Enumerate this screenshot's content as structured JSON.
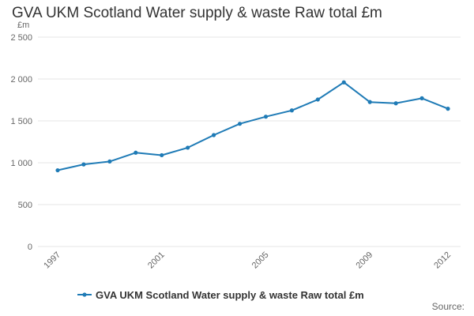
{
  "title": "GVA UKM Scotland Water supply & waste Raw total £m",
  "source_label": "Source:",
  "colors": {
    "series": "#1f7bb6",
    "grid": "#e6e6e6",
    "text": "#333333",
    "axis_text": "#666666"
  },
  "chart_data": {
    "type": "line",
    "title": "GVA UKM Scotland Water supply & waste Raw total £m",
    "ylabel": "£m",
    "xlabel": "",
    "ylim": [
      0,
      2500
    ],
    "yticks": [
      0,
      500,
      1000,
      1500,
      2000,
      2500
    ],
    "ytick_labels": [
      "0",
      "500",
      "1 000",
      "1 500",
      "2 000",
      "2 500"
    ],
    "xticks": [
      1997,
      2001,
      2005,
      2009,
      2012
    ],
    "x": [
      1997,
      1998,
      1999,
      2000,
      2001,
      2002,
      2003,
      2004,
      2005,
      2006,
      2007,
      2008,
      2009,
      2010,
      2011,
      2012
    ],
    "series": [
      {
        "name": "GVA UKM Scotland Water supply & waste Raw total £m",
        "values": [
          910,
          980,
          1015,
          1120,
          1090,
          1180,
          1330,
          1465,
          1550,
          1625,
          1755,
          1960,
          1725,
          1710,
          1770,
          1645
        ]
      }
    ],
    "grid": true,
    "legend": "bottom"
  }
}
